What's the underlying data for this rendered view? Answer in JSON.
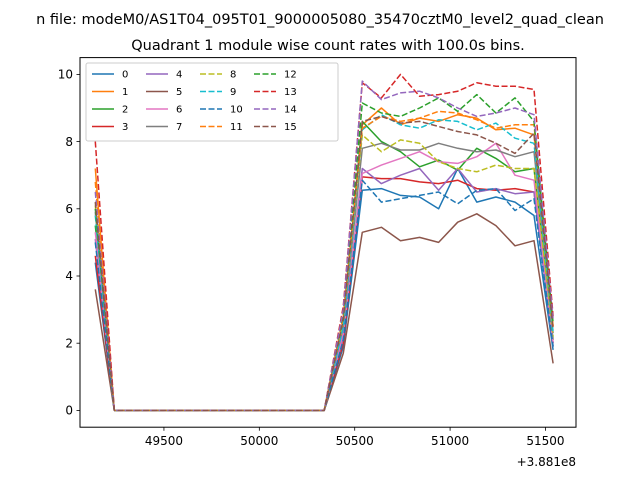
{
  "chart_data": {
    "type": "line",
    "suptitle": "n file: modeM0/AS1T04_095T01_9000005080_35470cztM0_level2_quad_clean",
    "title": "Quadrant 1 module wise count rates with 100.0s bins.",
    "xlabel": "",
    "ylabel": "",
    "x_offset_label": "+3.881e8",
    "xlim": [
      49060,
      51660
    ],
    "ylim": [
      -0.5,
      10.5
    ],
    "xticks": [
      49500,
      50000,
      50500,
      51000,
      51500
    ],
    "yticks": [
      0,
      2,
      4,
      6,
      8,
      10
    ],
    "grid": false,
    "legend": {
      "placement": "top-left",
      "ncol": 4
    },
    "x": [
      49140,
      49240,
      49340,
      49440,
      49540,
      49640,
      49740,
      49840,
      49940,
      50040,
      50140,
      50240,
      50340,
      50440,
      50540,
      50640,
      50740,
      50840,
      50940,
      51040,
      51140,
      51240,
      51340,
      51440,
      51540
    ],
    "series": [
      {
        "name": "0",
        "color": "#1f77b4",
        "dash": "solid",
        "values": [
          4.4,
          0,
          0,
          0,
          0,
          0,
          0,
          0,
          0,
          0,
          0,
          0,
          0,
          1.9,
          6.55,
          6.6,
          6.4,
          6.35,
          6.0,
          7.2,
          6.2,
          6.35,
          6.2,
          5.8,
          1.8
        ]
      },
      {
        "name": "1",
        "color": "#ff7f0e",
        "dash": "solid",
        "values": [
          7.2,
          0,
          0,
          0,
          0,
          0,
          0,
          0,
          0,
          0,
          0,
          0,
          0,
          2.7,
          8.5,
          9.0,
          8.5,
          8.7,
          8.6,
          8.8,
          8.7,
          8.35,
          8.4,
          8.2,
          2.5
        ]
      },
      {
        "name": "2",
        "color": "#2ca02c",
        "dash": "solid",
        "values": [
          5.5,
          0,
          0,
          0,
          0,
          0,
          0,
          0,
          0,
          0,
          0,
          0,
          0,
          2.5,
          8.6,
          8.0,
          7.7,
          7.25,
          7.45,
          7.15,
          7.8,
          7.5,
          7.1,
          7.2,
          2.1
        ]
      },
      {
        "name": "3",
        "color": "#d62728",
        "dash": "solid",
        "values": [
          4.6,
          0,
          0,
          0,
          0,
          0,
          0,
          0,
          0,
          0,
          0,
          0,
          0,
          2.0,
          6.95,
          6.9,
          6.9,
          6.8,
          6.75,
          6.85,
          6.6,
          6.55,
          6.6,
          6.5,
          2.0
        ]
      },
      {
        "name": "4",
        "color": "#9467bd",
        "dash": "solid",
        "values": [
          5.1,
          0,
          0,
          0,
          0,
          0,
          0,
          0,
          0,
          0,
          0,
          0,
          0,
          2.2,
          7.2,
          6.75,
          7.0,
          7.2,
          6.55,
          7.2,
          6.5,
          6.6,
          6.45,
          6.5,
          1.9
        ]
      },
      {
        "name": "5",
        "color": "#8c564b",
        "dash": "solid",
        "values": [
          3.6,
          0,
          0,
          0,
          0,
          0,
          0,
          0,
          0,
          0,
          0,
          0,
          0,
          1.7,
          5.3,
          5.45,
          5.05,
          5.15,
          5.0,
          5.6,
          5.85,
          5.5,
          4.9,
          5.05,
          1.4
        ]
      },
      {
        "name": "6",
        "color": "#e377c2",
        "dash": "solid",
        "values": [
          5.3,
          0,
          0,
          0,
          0,
          0,
          0,
          0,
          0,
          0,
          0,
          0,
          0,
          2.3,
          7.05,
          7.3,
          7.5,
          7.7,
          7.4,
          7.35,
          7.55,
          7.95,
          7.0,
          6.85,
          2.0
        ]
      },
      {
        "name": "7",
        "color": "#7f7f7f",
        "dash": "solid",
        "values": [
          5.9,
          0,
          0,
          0,
          0,
          0,
          0,
          0,
          0,
          0,
          0,
          0,
          0,
          2.5,
          7.8,
          7.95,
          7.75,
          7.75,
          7.95,
          7.8,
          7.7,
          7.75,
          7.55,
          7.7,
          2.3
        ]
      },
      {
        "name": "8",
        "color": "#bcbd22",
        "dash": "dash",
        "values": [
          6.1,
          0,
          0,
          0,
          0,
          0,
          0,
          0,
          0,
          0,
          0,
          0,
          0,
          2.6,
          8.2,
          7.7,
          8.05,
          7.95,
          7.4,
          7.2,
          7.1,
          7.3,
          7.2,
          7.2,
          2.2
        ]
      },
      {
        "name": "9",
        "color": "#17becf",
        "dash": "dash",
        "values": [
          5.8,
          0,
          0,
          0,
          0,
          0,
          0,
          0,
          0,
          0,
          0,
          0,
          0,
          2.5,
          8.35,
          8.8,
          8.5,
          8.4,
          8.65,
          8.6,
          8.35,
          8.55,
          8.1,
          7.95,
          2.3
        ]
      },
      {
        "name": "10",
        "color": "#1f77b4",
        "dash": "dash",
        "values": [
          5.0,
          0,
          0,
          0,
          0,
          0,
          0,
          0,
          0,
          0,
          0,
          0,
          0,
          2.1,
          6.85,
          6.2,
          6.3,
          6.4,
          6.5,
          6.15,
          6.55,
          6.6,
          5.95,
          6.3,
          1.9
        ]
      },
      {
        "name": "11",
        "color": "#ff7f0e",
        "dash": "dash",
        "values": [
          6.8,
          0,
          0,
          0,
          0,
          0,
          0,
          0,
          0,
          0,
          0,
          0,
          0,
          2.8,
          8.4,
          8.75,
          8.6,
          8.7,
          8.9,
          8.85,
          8.65,
          8.4,
          8.5,
          8.5,
          2.5
        ]
      },
      {
        "name": "12",
        "color": "#2ca02c",
        "dash": "dash",
        "values": [
          6.0,
          0,
          0,
          0,
          0,
          0,
          0,
          0,
          0,
          0,
          0,
          0,
          0,
          2.9,
          9.15,
          8.85,
          8.75,
          9.0,
          9.3,
          8.9,
          9.4,
          8.85,
          9.3,
          8.6,
          2.6
        ]
      },
      {
        "name": "13",
        "color": "#d62728",
        "dash": "dash",
        "values": [
          8.0,
          0,
          0,
          0,
          0,
          0,
          0,
          0,
          0,
          0,
          0,
          0,
          0,
          3.1,
          9.75,
          9.3,
          10.0,
          9.35,
          9.4,
          9.5,
          9.75,
          9.65,
          9.65,
          9.55,
          2.8
        ]
      },
      {
        "name": "14",
        "color": "#9467bd",
        "dash": "dash",
        "values": [
          6.5,
          0,
          0,
          0,
          0,
          0,
          0,
          0,
          0,
          0,
          0,
          0,
          0,
          3.0,
          9.8,
          9.25,
          9.45,
          9.5,
          9.3,
          9.0,
          8.75,
          8.85,
          9.0,
          8.8,
          2.7
        ]
      },
      {
        "name": "15",
        "color": "#8c564b",
        "dash": "dash",
        "values": [
          6.2,
          0,
          0,
          0,
          0,
          0,
          0,
          0,
          0,
          0,
          0,
          0,
          0,
          2.7,
          8.6,
          8.75,
          8.55,
          8.6,
          8.45,
          8.3,
          8.2,
          7.95,
          7.65,
          8.25,
          2.4
        ]
      }
    ]
  }
}
